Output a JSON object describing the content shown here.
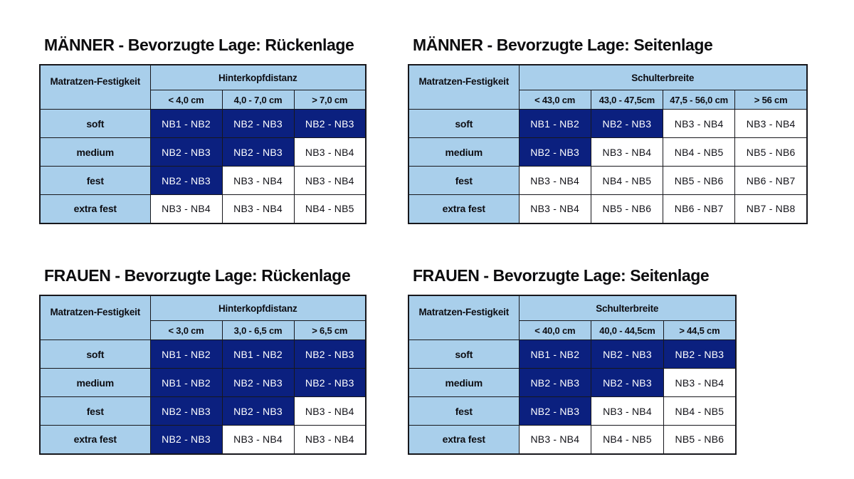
{
  "colors": {
    "page_bg": "#ffffff",
    "header_bg": "#a9cfeb",
    "highlight_bg": "#0b207f",
    "highlight_text": "#ffffff",
    "cell_text": "#121218",
    "border": "#17171c",
    "title_text": "#0d0d0f"
  },
  "chart_data": [
    {
      "type": "table",
      "title": "MÄNNER - Bevorzugte Lage: Rückenlage",
      "corner_label": "Matratzen-Festigkeit",
      "group_label": "Hinterkopfdistanz",
      "col_headers": [
        "< 4,0 cm",
        "4,0 - 7,0 cm",
        "> 7,0 cm"
      ],
      "row_labels": [
        "soft",
        "medium",
        "fest",
        "extra fest"
      ],
      "rows": [
        [
          {
            "value": "NB1 - NB2",
            "highlight": true
          },
          {
            "value": "NB2 - NB3",
            "highlight": true
          },
          {
            "value": "NB2 - NB3",
            "highlight": true
          }
        ],
        [
          {
            "value": "NB2 - NB3",
            "highlight": true
          },
          {
            "value": "NB2 - NB3",
            "highlight": true
          },
          {
            "value": "NB3 - NB4",
            "highlight": false
          }
        ],
        [
          {
            "value": "NB2 - NB3",
            "highlight": true
          },
          {
            "value": "NB3 - NB4",
            "highlight": false
          },
          {
            "value": "NB3 - NB4",
            "highlight": false
          }
        ],
        [
          {
            "value": "NB3 - NB4",
            "highlight": false
          },
          {
            "value": "NB3 - NB4",
            "highlight": false
          },
          {
            "value": "NB4 - NB5",
            "highlight": false
          }
        ]
      ]
    },
    {
      "type": "table",
      "title": "MÄNNER - Bevorzugte Lage: Seitenlage",
      "corner_label": "Matratzen-Festigkeit",
      "group_label": "Schulterbreite",
      "col_headers": [
        "< 43,0 cm",
        "43,0 - 47,5cm",
        "47,5 - 56,0 cm",
        "> 56 cm"
      ],
      "row_labels": [
        "soft",
        "medium",
        "fest",
        "extra fest"
      ],
      "rows": [
        [
          {
            "value": "NB1 - NB2",
            "highlight": true
          },
          {
            "value": "NB2 - NB3",
            "highlight": true
          },
          {
            "value": "NB3 - NB4",
            "highlight": false
          },
          {
            "value": "NB3 - NB4",
            "highlight": false
          }
        ],
        [
          {
            "value": "NB2 - NB3",
            "highlight": true
          },
          {
            "value": "NB3 - NB4",
            "highlight": false
          },
          {
            "value": "NB4 - NB5",
            "highlight": false
          },
          {
            "value": "NB5 - NB6",
            "highlight": false
          }
        ],
        [
          {
            "value": "NB3 - NB4",
            "highlight": false
          },
          {
            "value": "NB4 - NB5",
            "highlight": false
          },
          {
            "value": "NB5 - NB6",
            "highlight": false
          },
          {
            "value": "NB6 - NB7",
            "highlight": false
          }
        ],
        [
          {
            "value": "NB3 - NB4",
            "highlight": false
          },
          {
            "value": "NB5 - NB6",
            "highlight": false
          },
          {
            "value": "NB6 - NB7",
            "highlight": false
          },
          {
            "value": "NB7 - NB8",
            "highlight": false
          }
        ]
      ]
    },
    {
      "type": "table",
      "title": "FRAUEN - Bevorzugte Lage: Rückenlage",
      "corner_label": "Matratzen-Festigkeit",
      "group_label": "Hinterkopfdistanz",
      "col_headers": [
        "< 3,0 cm",
        "3,0 - 6,5 cm",
        "> 6,5 cm"
      ],
      "row_labels": [
        "soft",
        "medium",
        "fest",
        "extra fest"
      ],
      "rows": [
        [
          {
            "value": "NB1 - NB2",
            "highlight": true
          },
          {
            "value": "NB1 - NB2",
            "highlight": true
          },
          {
            "value": "NB2 - NB3",
            "highlight": true
          }
        ],
        [
          {
            "value": "NB1 - NB2",
            "highlight": true
          },
          {
            "value": "NB2 - NB3",
            "highlight": true
          },
          {
            "value": "NB2 - NB3",
            "highlight": true
          }
        ],
        [
          {
            "value": "NB2 - NB3",
            "highlight": true
          },
          {
            "value": "NB2 - NB3",
            "highlight": true
          },
          {
            "value": "NB3 - NB4",
            "highlight": false
          }
        ],
        [
          {
            "value": "NB2 - NB3",
            "highlight": true
          },
          {
            "value": "NB3 - NB4",
            "highlight": false
          },
          {
            "value": "NB3 - NB4",
            "highlight": false
          }
        ]
      ]
    },
    {
      "type": "table",
      "title": "FRAUEN - Bevorzugte Lage: Seitenlage",
      "corner_label": "Matratzen-Festigkeit",
      "group_label": "Schulterbreite",
      "col_headers": [
        "< 40,0 cm",
        "40,0 - 44,5cm",
        "> 44,5 cm"
      ],
      "row_labels": [
        "soft",
        "medium",
        "fest",
        "extra fest"
      ],
      "rows": [
        [
          {
            "value": "NB1 - NB2",
            "highlight": true
          },
          {
            "value": "NB2 - NB3",
            "highlight": true
          },
          {
            "value": "NB2 - NB3",
            "highlight": true
          }
        ],
        [
          {
            "value": "NB2 - NB3",
            "highlight": true
          },
          {
            "value": "NB2 - NB3",
            "highlight": true
          },
          {
            "value": "NB3 - NB4",
            "highlight": false
          }
        ],
        [
          {
            "value": "NB2 - NB3",
            "highlight": true
          },
          {
            "value": "NB3 - NB4",
            "highlight": false
          },
          {
            "value": "NB4 - NB5",
            "highlight": false
          }
        ],
        [
          {
            "value": "NB3 - NB4",
            "highlight": false
          },
          {
            "value": "NB4 - NB5",
            "highlight": false
          },
          {
            "value": "NB5 - NB6",
            "highlight": false
          }
        ]
      ]
    }
  ]
}
